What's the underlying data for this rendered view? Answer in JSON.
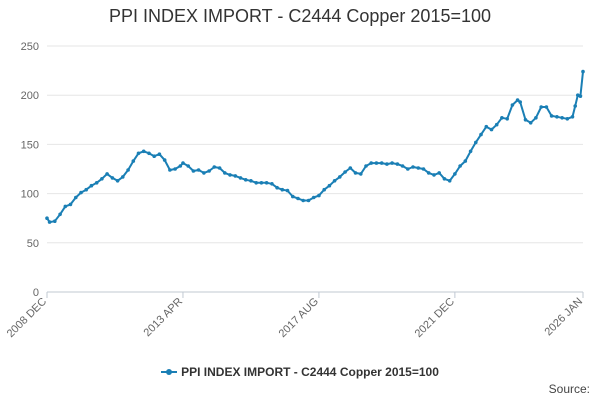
{
  "chart_data": {
    "type": "line",
    "title": "PPI INDEX IMPORT - C2444 Copper 2015=100",
    "xlabel": "",
    "ylabel": "",
    "ylim": [
      0,
      250
    ],
    "yticks": [
      0,
      50,
      100,
      150,
      200,
      250
    ],
    "xlim": [
      "2008-12",
      "2026-01"
    ],
    "xticks": [
      "2008 DEC",
      "2013 APR",
      "2017 AUG",
      "2021 DEC",
      "2026 JAN"
    ],
    "grid": "horizontal",
    "legend_position": "bottom",
    "series": [
      {
        "name": "PPI INDEX IMPORT - C2444 Copper 2015=100",
        "color": "#1a7fb5",
        "points": [
          [
            "2008-12",
            75
          ],
          [
            "2009-01",
            71
          ],
          [
            "2009-03",
            72
          ],
          [
            "2009-05",
            79
          ],
          [
            "2009-07",
            87
          ],
          [
            "2009-09",
            89
          ],
          [
            "2009-11",
            96
          ],
          [
            "2010-01",
            101
          ],
          [
            "2010-03",
            104
          ],
          [
            "2010-05",
            108
          ],
          [
            "2010-07",
            111
          ],
          [
            "2010-09",
            115
          ],
          [
            "2010-11",
            120
          ],
          [
            "2011-01",
            116
          ],
          [
            "2011-03",
            113
          ],
          [
            "2011-05",
            117
          ],
          [
            "2011-07",
            124
          ],
          [
            "2011-09",
            133
          ],
          [
            "2011-11",
            141
          ],
          [
            "2012-01",
            143
          ],
          [
            "2012-03",
            141
          ],
          [
            "2012-05",
            138
          ],
          [
            "2012-07",
            140
          ],
          [
            "2012-09",
            134
          ],
          [
            "2012-11",
            124
          ],
          [
            "2013-01",
            125
          ],
          [
            "2013-03",
            128
          ],
          [
            "2013-04",
            131
          ],
          [
            "2013-06",
            128
          ],
          [
            "2013-08",
            123
          ],
          [
            "2013-10",
            124
          ],
          [
            "2013-12",
            121
          ],
          [
            "2014-02",
            123
          ],
          [
            "2014-04",
            127
          ],
          [
            "2014-06",
            126
          ],
          [
            "2014-08",
            121
          ],
          [
            "2014-10",
            119
          ],
          [
            "2014-12",
            118
          ],
          [
            "2015-02",
            116
          ],
          [
            "2015-04",
            114
          ],
          [
            "2015-06",
            113
          ],
          [
            "2015-08",
            111
          ],
          [
            "2015-10",
            111
          ],
          [
            "2015-12",
            111
          ],
          [
            "2016-02",
            110
          ],
          [
            "2016-04",
            106
          ],
          [
            "2016-06",
            104
          ],
          [
            "2016-08",
            103
          ],
          [
            "2016-10",
            97
          ],
          [
            "2016-12",
            95
          ],
          [
            "2017-02",
            93
          ],
          [
            "2017-04",
            93
          ],
          [
            "2017-06",
            96
          ],
          [
            "2017-08",
            98
          ],
          [
            "2017-10",
            104
          ],
          [
            "2017-12",
            108
          ],
          [
            "2018-02",
            113
          ],
          [
            "2018-04",
            117
          ],
          [
            "2018-06",
            122
          ],
          [
            "2018-08",
            126
          ],
          [
            "2018-10",
            121
          ],
          [
            "2018-12",
            120
          ],
          [
            "2019-02",
            128
          ],
          [
            "2019-04",
            131
          ],
          [
            "2019-06",
            131
          ],
          [
            "2019-08",
            131
          ],
          [
            "2019-10",
            130
          ],
          [
            "2019-12",
            131
          ],
          [
            "2020-02",
            130
          ],
          [
            "2020-04",
            128
          ],
          [
            "2020-06",
            125
          ],
          [
            "2020-08",
            127
          ],
          [
            "2020-10",
            126
          ],
          [
            "2020-12",
            125
          ],
          [
            "2021-02",
            121
          ],
          [
            "2021-04",
            119
          ],
          [
            "2021-06",
            121
          ],
          [
            "2021-08",
            115
          ],
          [
            "2021-10",
            113
          ],
          [
            "2021-12",
            120
          ],
          [
            "2022-02",
            128
          ],
          [
            "2022-04",
            133
          ],
          [
            "2022-06",
            143
          ],
          [
            "2022-08",
            152
          ],
          [
            "2022-10",
            160
          ],
          [
            "2022-12",
            168
          ],
          [
            "2023-02",
            165
          ],
          [
            "2023-04",
            170
          ],
          [
            "2023-06",
            177
          ],
          [
            "2023-08",
            176
          ],
          [
            "2023-10",
            190
          ],
          [
            "2023-12",
            195
          ],
          [
            "2024-01",
            193
          ],
          [
            "2024-03",
            175
          ],
          [
            "2024-05",
            172
          ],
          [
            "2024-07",
            177
          ],
          [
            "2024-09",
            188
          ],
          [
            "2024-11",
            188
          ],
          [
            "2025-01",
            179
          ],
          [
            "2025-03",
            178
          ],
          [
            "2025-05",
            177
          ],
          [
            "2025-07",
            176
          ],
          [
            "2025-09",
            178
          ],
          [
            "2025-10",
            189
          ],
          [
            "2025-11",
            200
          ],
          [
            "2025-12",
            199
          ],
          [
            "2026-01",
            224
          ]
        ]
      }
    ]
  },
  "source_label": "Source:"
}
